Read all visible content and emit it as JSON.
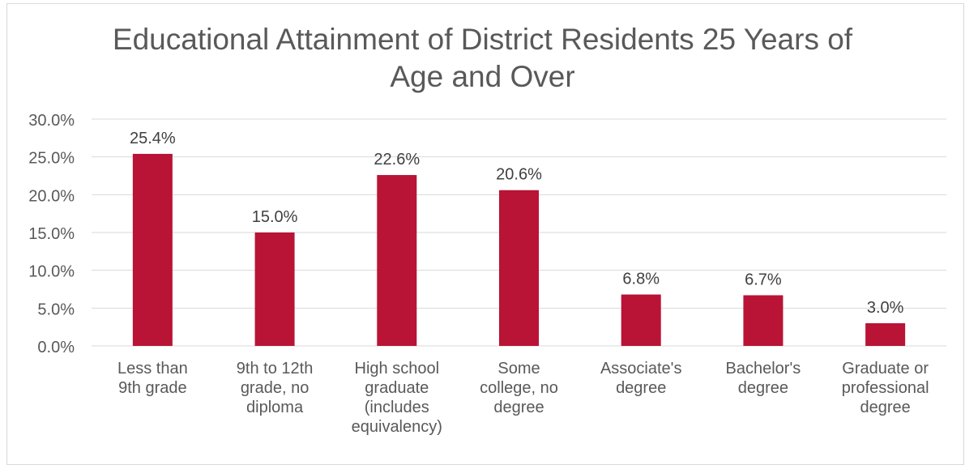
{
  "chart_data": {
    "type": "bar",
    "title_lines": [
      "Educational Attainment of District Residents 25 Years of",
      "Age and Over"
    ],
    "categories": [
      [
        "Less than",
        "9th grade"
      ],
      [
        "9th to 12th",
        "grade, no",
        "diploma"
      ],
      [
        "High school",
        "graduate",
        "(includes",
        "equivalency)"
      ],
      [
        "Some",
        "college, no",
        "degree"
      ],
      [
        "Associate's",
        "degree"
      ],
      [
        "Bachelor's",
        "degree"
      ],
      [
        "Graduate or",
        "professional",
        "degree"
      ]
    ],
    "values": [
      25.4,
      15.0,
      22.6,
      20.6,
      6.8,
      6.7,
      3.0
    ],
    "data_labels": [
      "25.4%",
      "15.0%",
      "22.6%",
      "20.6%",
      "6.8%",
      "6.7%",
      "3.0%"
    ],
    "ylim": [
      0,
      30
    ],
    "yticks": [
      0,
      5,
      10,
      15,
      20,
      25,
      30
    ],
    "ytick_labels": [
      "0.0%",
      "5.0%",
      "10.0%",
      "15.0%",
      "20.0%",
      "25.0%",
      "30.0%"
    ],
    "grid": true,
    "bar_color": "#b91335",
    "grid_color": "#d9d9d9",
    "text_color": "#595959"
  }
}
